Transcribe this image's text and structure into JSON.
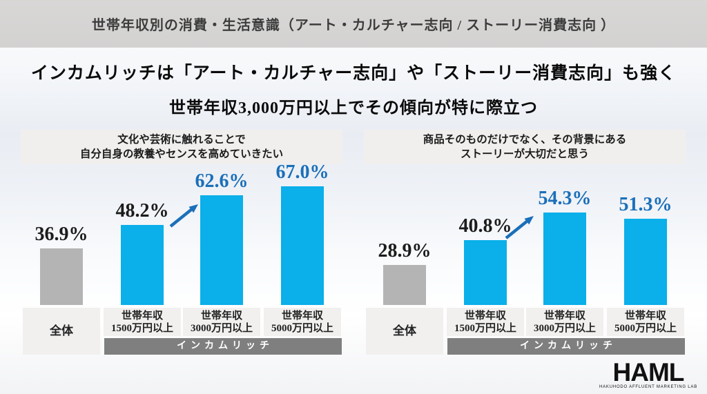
{
  "page": {
    "title": "世帯年収別の消費・生活意識（アート・カルチャー志向 / ストーリー消費志向 ）",
    "headline_line1": "インカムリッチは「アート・カルチャー志向」や「ストーリー消費志向」も強く",
    "headline_line2": "世帯年収3,000万円以上でその傾向が特に際立つ"
  },
  "colors": {
    "title_band_bg": "#d5d4d3",
    "overall_bar": "#b5b4b4",
    "income_bar": "#0bafe9",
    "value_blue": "#1b6fb9",
    "text_dark": "#1c1c1c",
    "band_gray": "#7f7f7f",
    "box_bg": "#f1f0ef"
  },
  "logo": {
    "name": "HAML",
    "caption": "HAKUHODO AFFLUENT MARKETING LAB"
  },
  "chart_data": [
    {
      "type": "bar",
      "question_lines": [
        "文化や芸術に触れることで",
        "自分自身の教養やセンスを高めていきたい"
      ],
      "categories": [
        [
          "全体"
        ],
        [
          "世帯年収",
          "1500万円以上"
        ],
        [
          "世帯年収",
          "3000万円以上"
        ],
        [
          "世帯年収",
          "5000万円以上"
        ]
      ],
      "values": [
        36.9,
        48.2,
        62.6,
        67.0
      ],
      "value_labels": [
        "36.9%",
        "48.2%",
        "62.6%",
        "67.0%"
      ],
      "value_label_styles": [
        "dark",
        "dark",
        "blue",
        "blue"
      ],
      "bar_colors": [
        "gray",
        "blue",
        "blue",
        "blue"
      ],
      "group_label": "インカムリッチ",
      "arrow_between": [
        1,
        2
      ],
      "ylim": [
        9.5,
        75
      ],
      "grid": false,
      "data_labels": true
    },
    {
      "type": "bar",
      "question_lines": [
        "商品そのものだけでなく、その背景にある",
        "ストーリーが大切だと思う"
      ],
      "categories": [
        [
          "全体"
        ],
        [
          "世帯年収",
          "1500万円以上"
        ],
        [
          "世帯年収",
          "3000万円以上"
        ],
        [
          "世帯年収",
          "5000万円以上"
        ]
      ],
      "values": [
        28.9,
        40.8,
        54.3,
        51.3
      ],
      "value_labels": [
        "28.9%",
        "40.8%",
        "54.3%",
        "51.3%"
      ],
      "value_label_styles": [
        "dark",
        "dark",
        "blue",
        "blue"
      ],
      "bar_colors": [
        "gray",
        "blue",
        "blue",
        "blue"
      ],
      "group_label": "インカムリッチ",
      "arrow_between": [
        1,
        2
      ],
      "ylim": [
        9.5,
        75
      ],
      "grid": false,
      "data_labels": true
    }
  ]
}
